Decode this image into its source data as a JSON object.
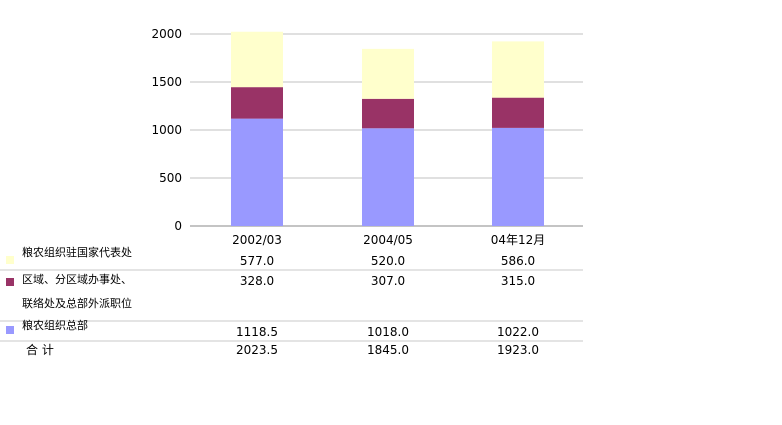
{
  "chart_data": {
    "type": "bar",
    "stacked": true,
    "categories": [
      "2002/03",
      "2004/05",
      "04年12月"
    ],
    "ylim": [
      0,
      2000
    ],
    "yticks": [
      0,
      500,
      1000,
      1500,
      2000
    ],
    "grid": true,
    "series": [
      {
        "name": "粮农组织总部",
        "values": [
          1118.5,
          1018.0,
          1022.0
        ],
        "color": "#9999ff",
        "labels": [
          "1118.5",
          "1018.0",
          "1022.0"
        ]
      },
      {
        "name": "区域、分区域办事处、联络处及总部外派职位",
        "name_lines": [
          "区域、分区域办事处、",
          "联络处及总部外派职位"
        ],
        "values": [
          328.0,
          307.0,
          315.0
        ],
        "color": "#993366",
        "labels": [
          "328.0",
          "307.0",
          "315.0"
        ]
      },
      {
        "name": "粮农组织驻国家代表处",
        "values": [
          577.0,
          520.0,
          586.0
        ],
        "color": "#ffffcc",
        "labels": [
          "577.0",
          "520.0",
          "586.0"
        ]
      }
    ],
    "totals": {
      "label": "合 计",
      "labels": [
        "2023.5",
        "1845.0",
        "1923.0"
      ]
    }
  }
}
